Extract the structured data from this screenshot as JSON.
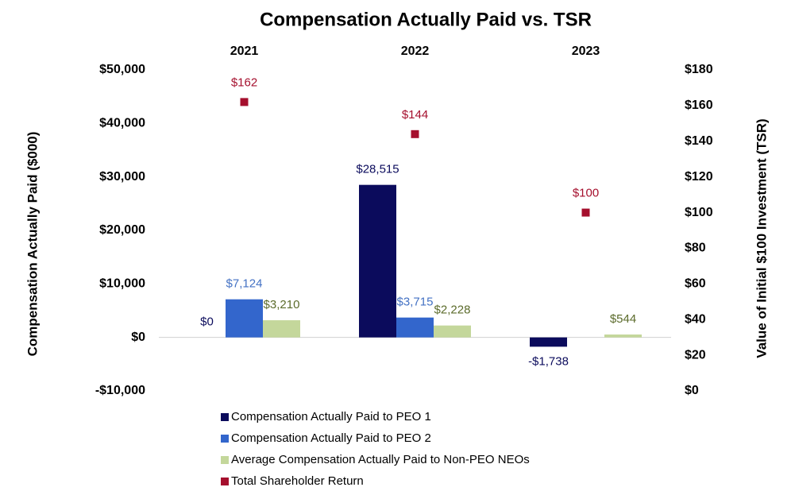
{
  "chart_data": {
    "type": "bar",
    "title": "Compensation Actually Paid vs. TSR",
    "y_label": "Compensation Actually Paid ($000)",
    "y2_label": "Value of Initial $100 Investment (TSR)",
    "categories": [
      "2021",
      "2022",
      "2023"
    ],
    "ylim": [
      -10000,
      50000
    ],
    "yticks": [
      {
        "value": -10000,
        "label": "-$10,000"
      },
      {
        "value": 0,
        "label": "$0"
      },
      {
        "value": 10000,
        "label": "$10,000"
      },
      {
        "value": 20000,
        "label": "$20,000"
      },
      {
        "value": 30000,
        "label": "$30,000"
      },
      {
        "value": 40000,
        "label": "$40,000"
      },
      {
        "value": 50000,
        "label": "$50,000"
      }
    ],
    "y2lim": [
      0,
      180
    ],
    "y2ticks": [
      {
        "value": 0,
        "label": "$0"
      },
      {
        "value": 20,
        "label": "$20"
      },
      {
        "value": 40,
        "label": "$40"
      },
      {
        "value": 60,
        "label": "$60"
      },
      {
        "value": 80,
        "label": "$80"
      },
      {
        "value": 100,
        "label": "$100"
      },
      {
        "value": 120,
        "label": "$120"
      },
      {
        "value": 140,
        "label": "$140"
      },
      {
        "value": 160,
        "label": "$160"
      },
      {
        "value": 180,
        "label": "$180"
      }
    ],
    "series": [
      {
        "name": "Compensation Actually Paid to PEO 1",
        "color": "#0b0b5c",
        "label_color": "#0b0b5c",
        "values": [
          0,
          28515,
          -1738
        ],
        "value_labels": [
          "$0",
          "$28,515",
          "-$1,738"
        ]
      },
      {
        "name": "Compensation Actually Paid to PEO 2",
        "color": "#3366cc",
        "label_color": "#4472c4",
        "values": [
          7124,
          3715,
          null
        ],
        "value_labels": [
          "$7,124",
          "$3,715",
          null
        ]
      },
      {
        "name": "Average Compensation Actually Paid to Non-PEO NEOs",
        "color": "#c4d79b",
        "label_color": "#5b6b2b",
        "values": [
          3210,
          2228,
          544
        ],
        "value_labels": [
          "$3,210",
          "$2,228",
          "$544"
        ]
      },
      {
        "name": "Total Shareholder Return",
        "type": "scatter",
        "axis": "y2",
        "color": "#a50f2d",
        "label_color": "#a50f2d",
        "values": [
          162,
          144,
          100
        ],
        "value_labels": [
          "$162",
          "$144",
          "$100"
        ]
      }
    ]
  }
}
